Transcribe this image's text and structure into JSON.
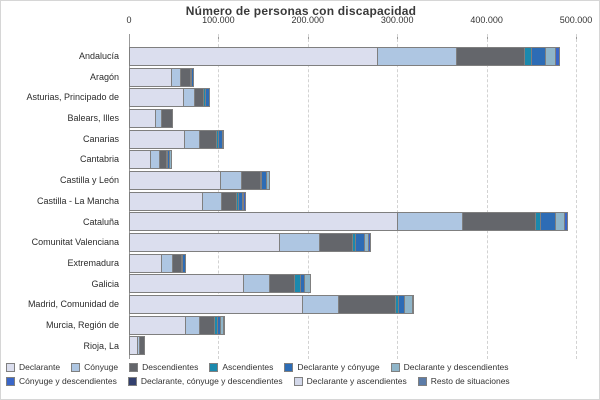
{
  "chart_data": {
    "type": "bar",
    "orientation": "horizontal",
    "title": "Número de personas con discapacidad",
    "xlabel": "",
    "ylabel": "",
    "xlim": [
      0,
      500000
    ],
    "grid": "dashed-vertical",
    "legend_position": "bottom",
    "x_ticks": [
      {
        "label": "0",
        "value": 0
      },
      {
        "label": "100.000",
        "value": 100000
      },
      {
        "label": "200.000",
        "value": 200000
      },
      {
        "label": "300.000",
        "value": 300000
      },
      {
        "label": "400.000",
        "value": 400000
      },
      {
        "label": "500.000",
        "value": 500000
      }
    ],
    "categories": [
      "Andalucía",
      "Aragón",
      "Asturias, Principado de",
      "Balears, Illes",
      "Canarias",
      "Cantabria",
      "Castilla y León",
      "Castilla - La Mancha",
      "Cataluña",
      "Comunitat Valenciana",
      "Extremadura",
      "Galicia",
      "Madrid, Comunidad de",
      "Murcia, Región de",
      "Rioja, La"
    ],
    "series": [
      {
        "name": "Declarante",
        "color": "#dbdeee",
        "values": [
          276000,
          46000,
          59000,
          28000,
          60000,
          22000,
          101000,
          80000,
          299000,
          167000,
          35000,
          126000,
          192000,
          61000,
          8000
        ]
      },
      {
        "name": "Cónyuge",
        "color": "#aec6e2",
        "values": [
          89000,
          10000,
          13000,
          7000,
          17000,
          10000,
          23000,
          22000,
          72000,
          44000,
          12000,
          30000,
          41000,
          16000,
          2500
        ]
      },
      {
        "name": "Descendientes",
        "color": "#64666b",
        "values": [
          76000,
          11000,
          10000,
          12000,
          19000,
          8000,
          21000,
          17000,
          82000,
          37000,
          10000,
          28000,
          63000,
          17000,
          5500
        ]
      },
      {
        "name": "Ascendientes",
        "color": "#1b89ad",
        "values": [
          8000,
          1000,
          1500,
          0,
          2500,
          1000,
          2000,
          2000,
          6000,
          4000,
          1000,
          6000,
          4000,
          3000,
          0
        ]
      },
      {
        "name": "Declarante y cónyuge",
        "color": "#2d6cb5",
        "values": [
          15000,
          2000,
          4500,
          0,
          4500,
          3000,
          5000,
          4000,
          16000,
          10000,
          3000,
          5000,
          6000,
          4000,
          0
        ]
      },
      {
        "name": "Declarante y descendientes",
        "color": "#8fb5c9",
        "values": [
          11000,
          0,
          0,
          0,
          1000,
          2000,
          3000,
          2000,
          11000,
          4000,
          0,
          6000,
          9000,
          3000,
          0
        ]
      },
      {
        "name": "Cónyuge y descendientes",
        "color": "#3a66c8",
        "values": [
          5000,
          0,
          0,
          0,
          0,
          0,
          0,
          2000,
          3000,
          2000,
          0,
          0,
          2000,
          1000,
          0
        ]
      },
      {
        "name": "Declarante, cónyuge y descendientes",
        "color": "#33406e",
        "values": [
          0,
          0,
          0,
          0,
          0,
          0,
          0,
          0,
          0,
          0,
          0,
          0,
          0,
          0,
          0
        ]
      },
      {
        "name": "Declarante y ascendientes",
        "color": "#d3d8ea",
        "values": [
          0,
          0,
          0,
          0,
          0,
          0,
          0,
          0,
          0,
          0,
          0,
          0,
          0,
          0,
          0
        ]
      },
      {
        "name": "Resto de situaciones",
        "color": "#5c7ca8",
        "values": [
          0,
          0,
          0,
          0,
          0,
          0,
          0,
          0,
          0,
          0,
          0,
          0,
          0,
          0,
          0
        ]
      }
    ]
  }
}
